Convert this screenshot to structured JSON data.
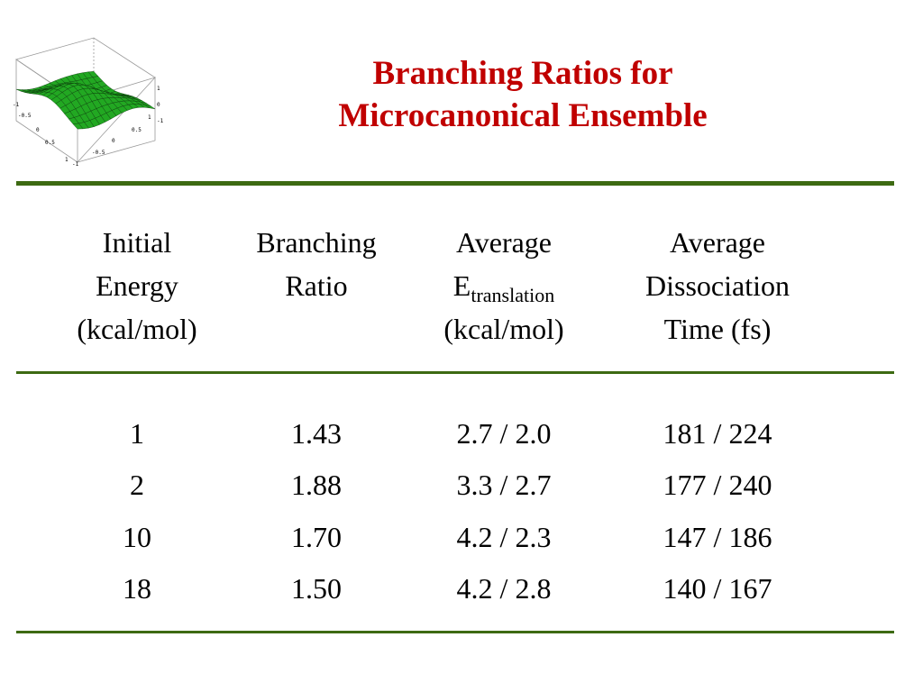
{
  "title": {
    "line1": "Branching Ratios for",
    "line2": "Microcanonical Ensemble"
  },
  "logo": {
    "icon": "3d-surface-plot-icon",
    "axis_labels_left": [
      "-1",
      "-0.5",
      "0",
      "0.5",
      "1"
    ],
    "axis_labels_bottom": [
      "-1",
      "-0.5",
      "0",
      "0.5",
      "1"
    ],
    "axis_labels_right": [
      "1",
      "0",
      "-1"
    ]
  },
  "table": {
    "headers": [
      {
        "lines": [
          "Initial",
          "Energy",
          "(kcal/mol)"
        ]
      },
      {
        "lines": [
          "Branching",
          "Ratio"
        ]
      },
      {
        "line1": "Average",
        "e_base": "E",
        "e_sub": "translation",
        "line3": "(kcal/mol)"
      },
      {
        "lines": [
          "Average",
          "Dissociation",
          "Time (fs)"
        ]
      }
    ],
    "rows": [
      [
        "1",
        "1.43",
        "2.7 / 2.0",
        "181 / 224"
      ],
      [
        "2",
        "1.88",
        "3.3 / 2.7",
        "177 / 240"
      ],
      [
        "10",
        "1.70",
        "4.2 / 2.3",
        "147 / 186"
      ],
      [
        "18",
        "1.50",
        "4.2 / 2.8",
        "140 / 167"
      ]
    ]
  },
  "colors": {
    "title": "#c00000",
    "rule": "#3d6a12",
    "surface": "#22a822"
  },
  "chart_data": {
    "type": "table",
    "columns": [
      "Initial Energy (kcal/mol)",
      "Branching Ratio",
      "Average Etranslation (kcal/mol)",
      "Average Dissociation Time (fs)"
    ],
    "rows": [
      [
        "1",
        "1.43",
        "2.7 / 2.0",
        "181 / 224"
      ],
      [
        "2",
        "1.88",
        "3.3 / 2.7",
        "177 / 240"
      ],
      [
        "10",
        "1.70",
        "4.2 / 2.3",
        "147 / 186"
      ],
      [
        "18",
        "1.50",
        "4.2 / 2.8",
        "140 / 167"
      ]
    ]
  }
}
